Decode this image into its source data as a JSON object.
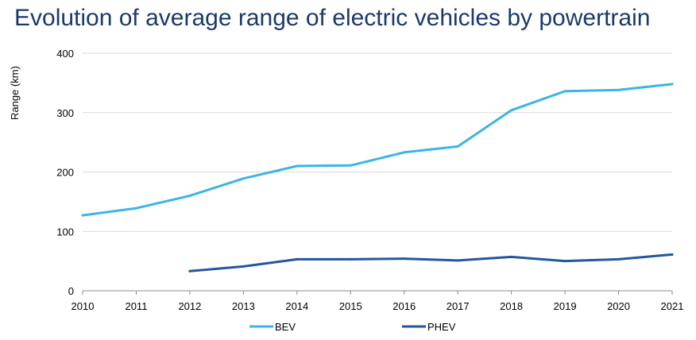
{
  "chart_data": {
    "type": "line",
    "title": "Evolution of average range of electric vehicles by powertrain",
    "xlabel": "",
    "ylabel": "Range (km)",
    "x": [
      "2010",
      "2011",
      "2012",
      "2013",
      "2014",
      "2015",
      "2016",
      "2017",
      "2018",
      "2019",
      "2020",
      "2021"
    ],
    "ylim": [
      0,
      400
    ],
    "yticks": [
      "0",
      "100",
      "200",
      "300",
      "400"
    ],
    "grid": true,
    "legend_position": "bottom",
    "series": [
      {
        "name": "BEV",
        "color": "#3cb4e6",
        "values": [
          127,
          139,
          160,
          189,
          210,
          211,
          233,
          243,
          304,
          336,
          338,
          348
        ]
      },
      {
        "name": "PHEV",
        "color": "#2356a0",
        "values": [
          null,
          null,
          33,
          41,
          53,
          53,
          54,
          51,
          57,
          50,
          53,
          61
        ]
      }
    ]
  }
}
